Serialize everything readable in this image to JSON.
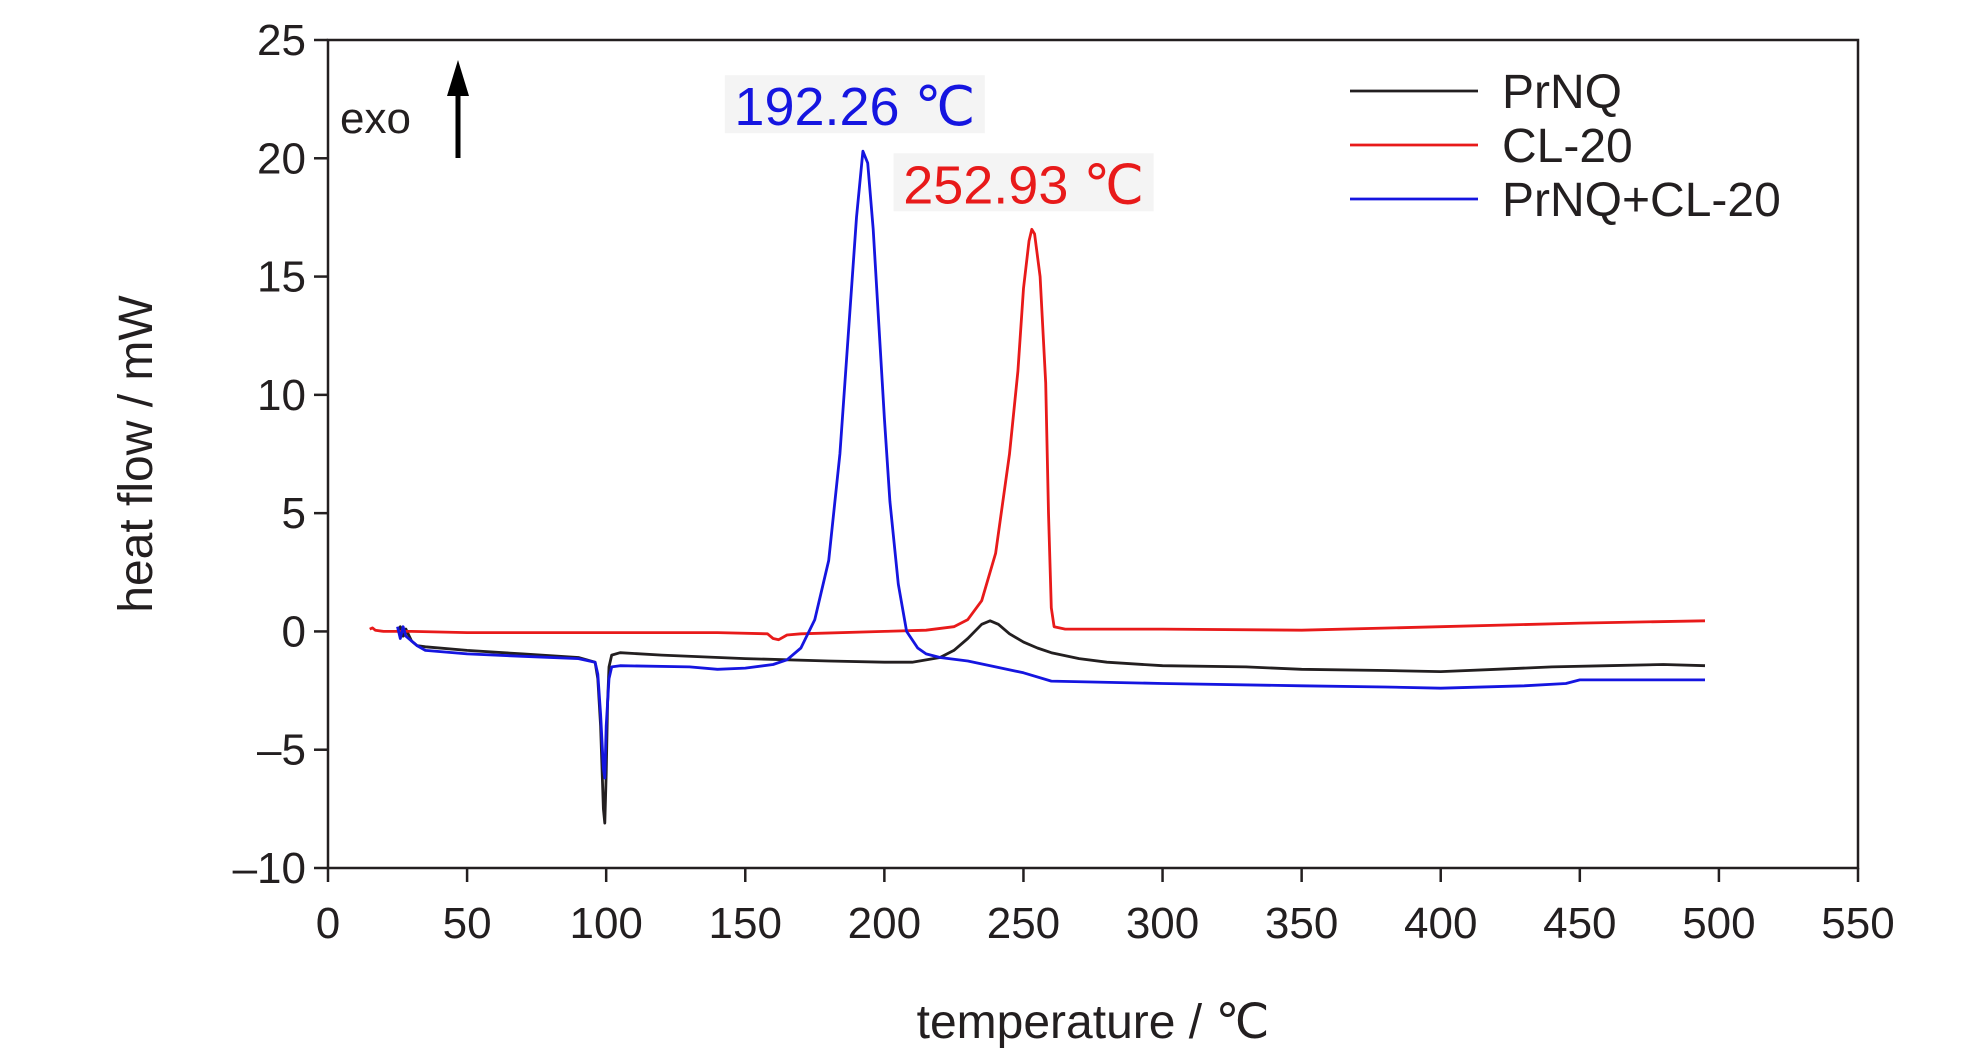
{
  "chart_data": {
    "type": "line",
    "xlabel": "temperature / ℃",
    "ylabel": "heat flow / mW",
    "xlim": [
      0,
      550
    ],
    "ylim": [
      -10,
      25
    ],
    "xticks": [
      0,
      50,
      100,
      150,
      200,
      250,
      300,
      350,
      400,
      450,
      500,
      550
    ],
    "yticks": [
      25,
      20,
      15,
      10,
      5,
      0,
      -5,
      -10
    ],
    "ytick_labels": [
      "25",
      "20",
      "15",
      "10",
      "5",
      "0",
      "–5",
      "–10"
    ],
    "grid": false,
    "legend_position": "top-right",
    "legend": [
      "PrNQ",
      "CL-20",
      "PrNQ+CL-20"
    ],
    "exo_label": "exo",
    "annotations": [
      {
        "text": "192.26 ℃",
        "x": 192.26,
        "y": 20.3,
        "color": "#1515e0"
      },
      {
        "text": "252.93 ℃",
        "x": 252.93,
        "y": 17.0,
        "color": "#e81a1a"
      }
    ],
    "series": [
      {
        "name": "PrNQ",
        "color": "#231f20",
        "points": [
          [
            25,
            0
          ],
          [
            26,
            0.2
          ],
          [
            27,
            -0.2
          ],
          [
            28,
            0.1
          ],
          [
            30,
            -0.4
          ],
          [
            32,
            -0.6
          ],
          [
            35,
            -0.65
          ],
          [
            50,
            -0.8
          ],
          [
            70,
            -0.95
          ],
          [
            90,
            -1.1
          ],
          [
            96,
            -1.3
          ],
          [
            97,
            -2
          ],
          [
            98,
            -4
          ],
          [
            99,
            -7.5
          ],
          [
            99.5,
            -8.1
          ],
          [
            100,
            -6
          ],
          [
            100.5,
            -3
          ],
          [
            101,
            -1.5
          ],
          [
            102,
            -1.0
          ],
          [
            105,
            -0.9
          ],
          [
            120,
            -1.0
          ],
          [
            150,
            -1.15
          ],
          [
            180,
            -1.25
          ],
          [
            200,
            -1.3
          ],
          [
            210,
            -1.3
          ],
          [
            220,
            -1.1
          ],
          [
            225,
            -0.8
          ],
          [
            230,
            -0.3
          ],
          [
            235,
            0.3
          ],
          [
            238,
            0.45
          ],
          [
            241,
            0.3
          ],
          [
            245,
            -0.1
          ],
          [
            250,
            -0.45
          ],
          [
            255,
            -0.7
          ],
          [
            260,
            -0.9
          ],
          [
            270,
            -1.15
          ],
          [
            280,
            -1.3
          ],
          [
            300,
            -1.45
          ],
          [
            330,
            -1.5
          ],
          [
            350,
            -1.6
          ],
          [
            380,
            -1.65
          ],
          [
            400,
            -1.7
          ],
          [
            420,
            -1.6
          ],
          [
            440,
            -1.5
          ],
          [
            460,
            -1.45
          ],
          [
            480,
            -1.4
          ],
          [
            495,
            -1.45
          ]
        ]
      },
      {
        "name": "CL-20",
        "color": "#e81a1a",
        "points": [
          [
            15,
            0.1
          ],
          [
            16,
            0.15
          ],
          [
            17,
            0.05
          ],
          [
            20,
            0
          ],
          [
            30,
            0
          ],
          [
            50,
            -0.05
          ],
          [
            100,
            -0.05
          ],
          [
            140,
            -0.05
          ],
          [
            158,
            -0.1
          ],
          [
            160,
            -0.3
          ],
          [
            162,
            -0.35
          ],
          [
            165,
            -0.15
          ],
          [
            170,
            -0.1
          ],
          [
            200,
            0
          ],
          [
            215,
            0.05
          ],
          [
            225,
            0.2
          ],
          [
            230,
            0.5
          ],
          [
            235,
            1.3
          ],
          [
            240,
            3.3
          ],
          [
            245,
            7.5
          ],
          [
            248,
            11
          ],
          [
            250,
            14.5
          ],
          [
            252,
            16.5
          ],
          [
            253,
            17.0
          ],
          [
            254,
            16.8
          ],
          [
            256,
            15
          ],
          [
            258,
            10.5
          ],
          [
            259,
            5
          ],
          [
            260,
            1
          ],
          [
            261,
            0.2
          ],
          [
            265,
            0.1
          ],
          [
            300,
            0.1
          ],
          [
            350,
            0.05
          ],
          [
            400,
            0.2
          ],
          [
            450,
            0.35
          ],
          [
            495,
            0.45
          ]
        ]
      },
      {
        "name": "PrNQ+CL-20",
        "color": "#1515e0",
        "points": [
          [
            25,
            0.2
          ],
          [
            26,
            -0.3
          ],
          [
            27,
            0.2
          ],
          [
            28,
            -0.2
          ],
          [
            30,
            -0.4
          ],
          [
            32,
            -0.6
          ],
          [
            35,
            -0.8
          ],
          [
            50,
            -0.95
          ],
          [
            70,
            -1.05
          ],
          [
            90,
            -1.15
          ],
          [
            96,
            -1.3
          ],
          [
            97,
            -1.8
          ],
          [
            98,
            -3.5
          ],
          [
            99,
            -5.8
          ],
          [
            99.5,
            -6.2
          ],
          [
            100,
            -4
          ],
          [
            101,
            -2
          ],
          [
            102,
            -1.5
          ],
          [
            105,
            -1.45
          ],
          [
            130,
            -1.5
          ],
          [
            140,
            -1.6
          ],
          [
            150,
            -1.55
          ],
          [
            160,
            -1.4
          ],
          [
            165,
            -1.2
          ],
          [
            170,
            -0.7
          ],
          [
            175,
            0.5
          ],
          [
            180,
            3
          ],
          [
            184,
            7.5
          ],
          [
            187,
            12.5
          ],
          [
            190,
            17.5
          ],
          [
            192.3,
            20.3
          ],
          [
            194,
            19.8
          ],
          [
            196,
            17
          ],
          [
            198,
            13
          ],
          [
            200,
            9
          ],
          [
            202,
            5.5
          ],
          [
            205,
            2
          ],
          [
            208,
            0
          ],
          [
            212,
            -0.7
          ],
          [
            215,
            -0.95
          ],
          [
            220,
            -1.1
          ],
          [
            230,
            -1.25
          ],
          [
            240,
            -1.5
          ],
          [
            250,
            -1.75
          ],
          [
            260,
            -2.1
          ],
          [
            300,
            -2.2
          ],
          [
            350,
            -2.3
          ],
          [
            380,
            -2.35
          ],
          [
            400,
            -2.4
          ],
          [
            430,
            -2.3
          ],
          [
            445,
            -2.2
          ],
          [
            450,
            -2.05
          ],
          [
            470,
            -2.05
          ],
          [
            495,
            -2.05
          ]
        ]
      }
    ]
  },
  "colors": {
    "axis": "#231f20",
    "prnq": "#231f20",
    "cl20": "#e81a1a",
    "mix": "#1515e0"
  }
}
